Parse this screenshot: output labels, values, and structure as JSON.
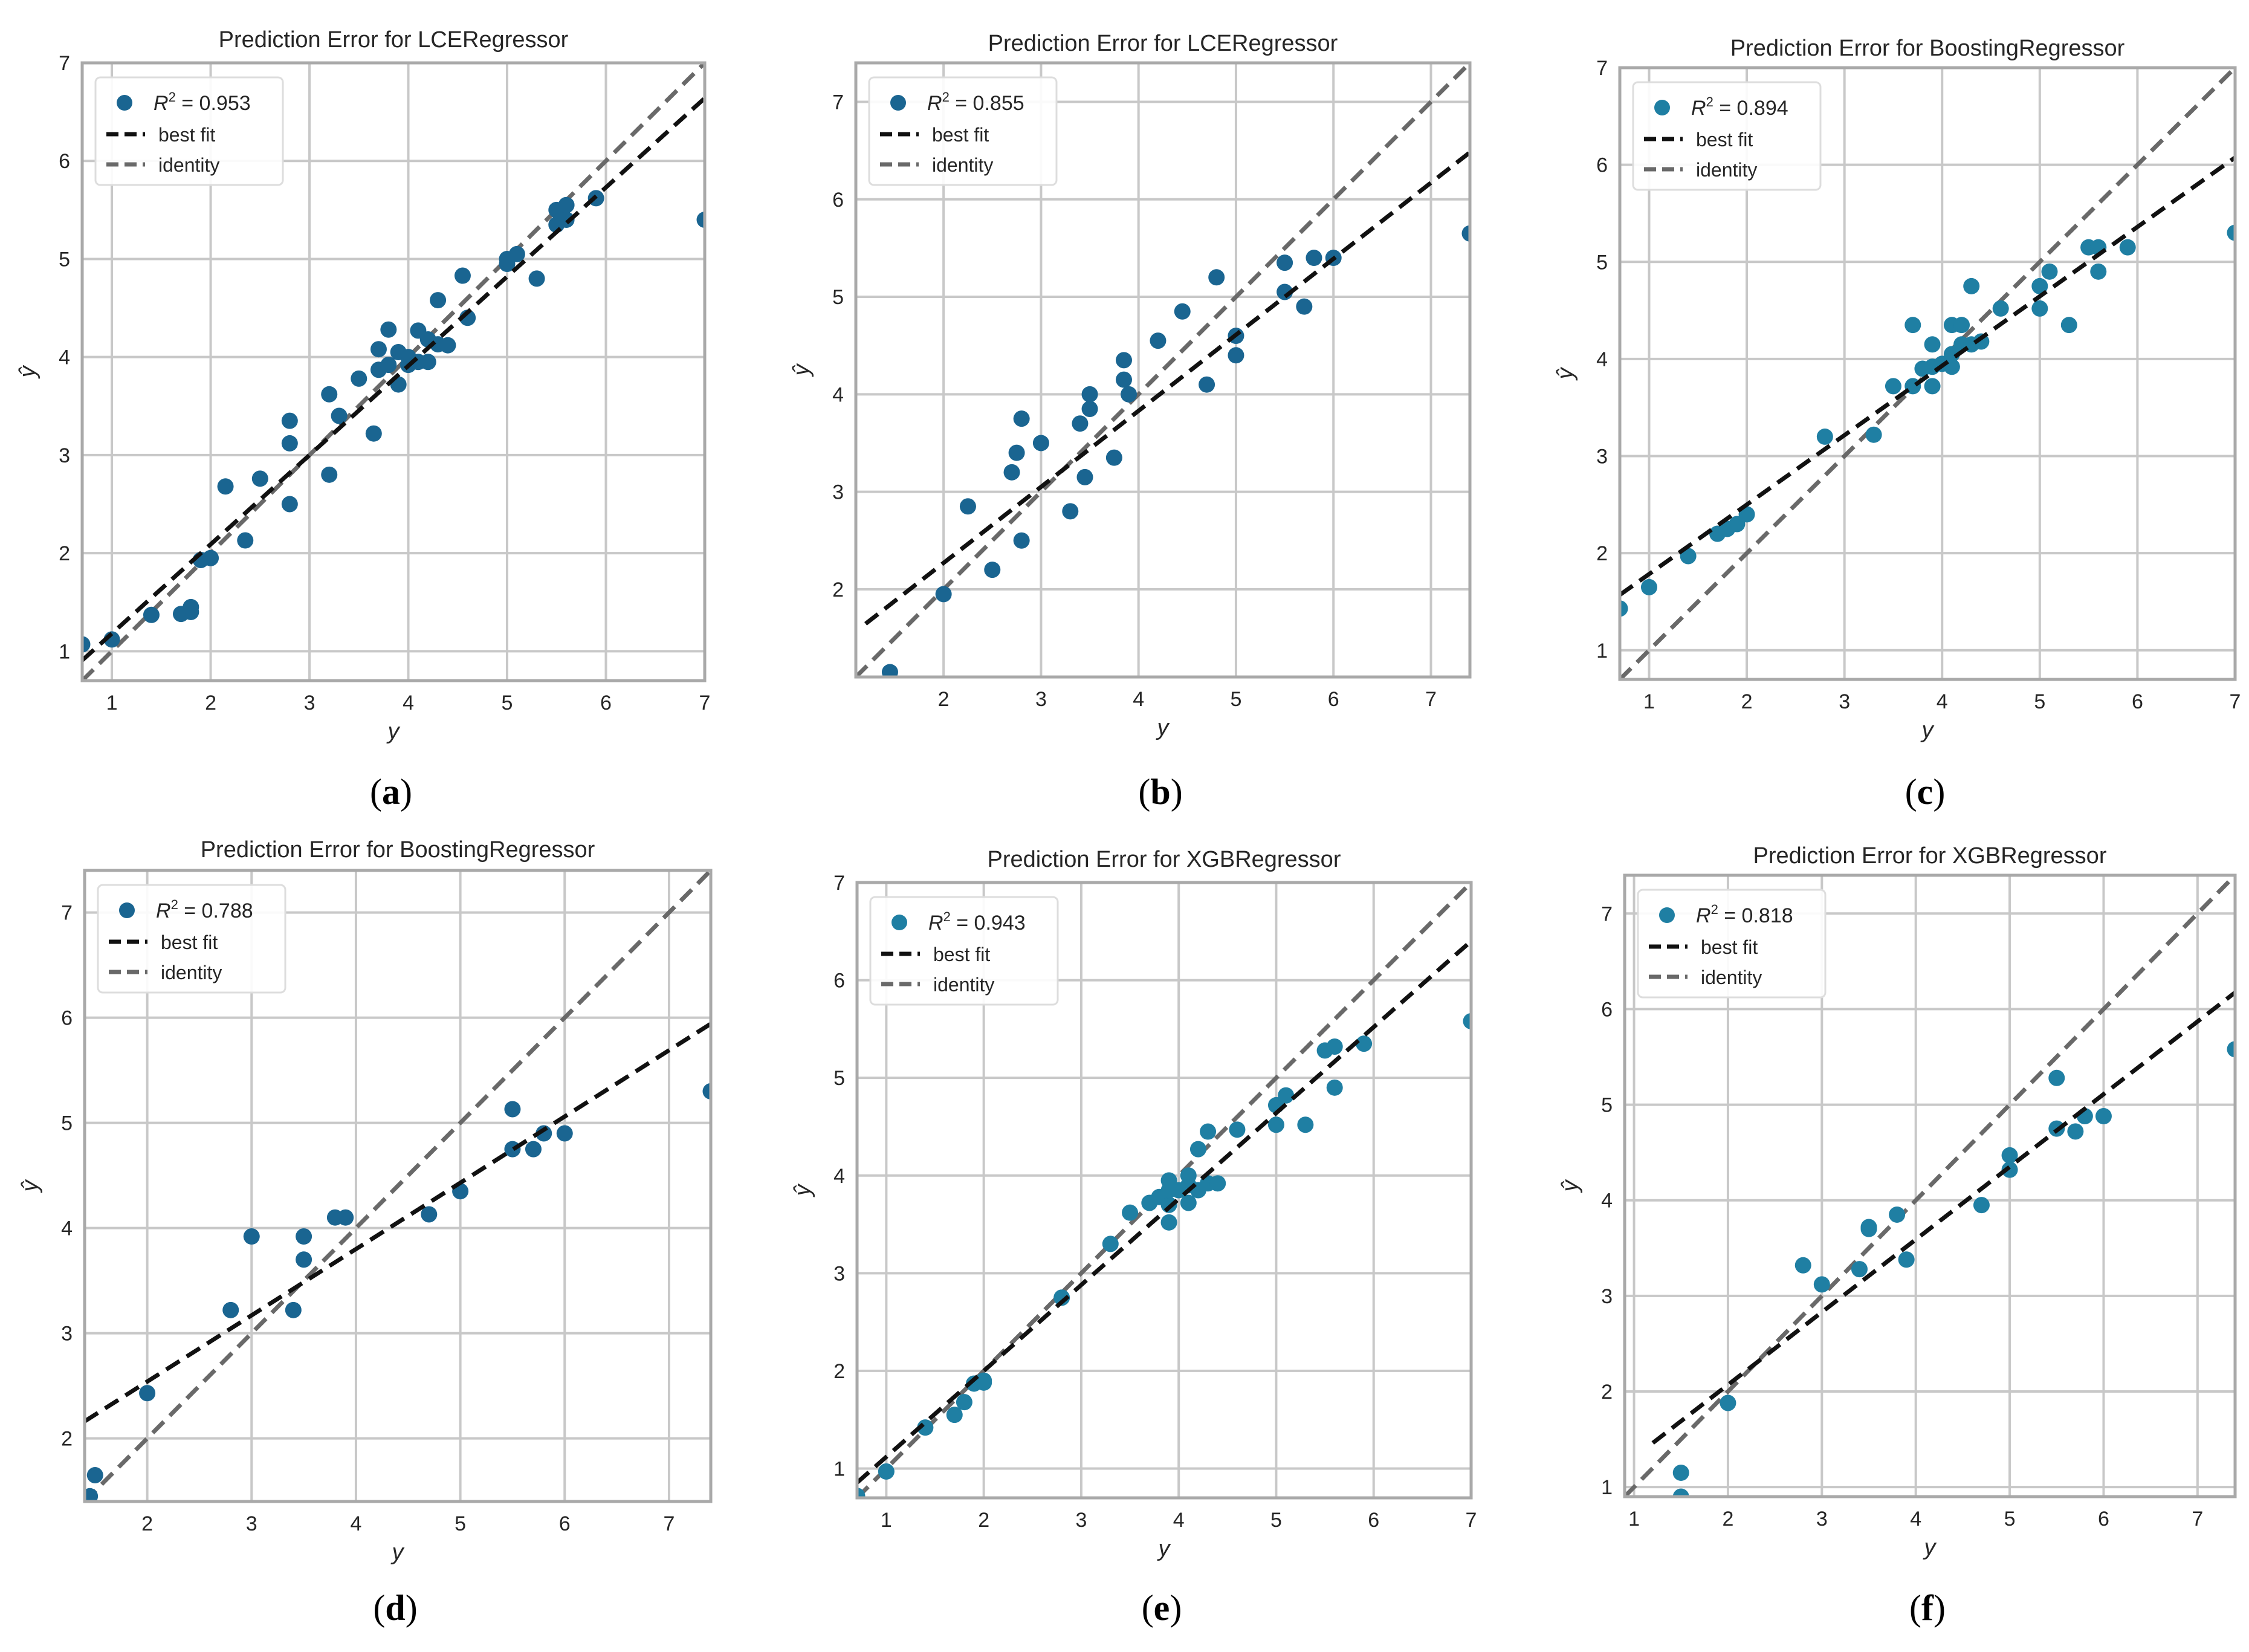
{
  "colors": {
    "point": "#1a6591",
    "point_alt": "#1f7fa3",
    "best_fit": "#111111",
    "identity": "#696969",
    "grid": "#c8c8c8",
    "frame": "#a9a9a9"
  },
  "legend_labels": {
    "best_fit": "best fit",
    "identity": "identity"
  },
  "chart_data": [
    {
      "type": "scatter",
      "panel": "a",
      "caption_letter": "a",
      "title": "Prediction Error for LCERegressor",
      "xlabel": "y",
      "ylabel": "ŷ",
      "xlim": [
        0.7,
        7.0
      ],
      "ylim": [
        0.7,
        7.0
      ],
      "xticks": [
        1,
        2,
        3,
        4,
        5,
        6,
        7
      ],
      "yticks": [
        1,
        2,
        3,
        4,
        5,
        6,
        7
      ],
      "r2_value": "0.953",
      "best_fit": {
        "slope": 0.91,
        "intercept": 0.27
      },
      "legend_position": "upper-left",
      "grid": true,
      "points": [
        [
          0.7,
          1.07
        ],
        [
          1.0,
          1.12
        ],
        [
          1.4,
          1.37
        ],
        [
          1.7,
          1.38
        ],
        [
          1.8,
          1.4
        ],
        [
          1.8,
          1.45
        ],
        [
          1.9,
          1.93
        ],
        [
          2.0,
          1.95
        ],
        [
          2.15,
          2.68
        ],
        [
          2.35,
          2.13
        ],
        [
          2.5,
          2.76
        ],
        [
          2.8,
          2.5
        ],
        [
          2.8,
          3.12
        ],
        [
          2.8,
          3.35
        ],
        [
          3.2,
          2.8
        ],
        [
          3.2,
          3.62
        ],
        [
          3.3,
          3.4
        ],
        [
          3.5,
          3.78
        ],
        [
          3.65,
          3.22
        ],
        [
          3.7,
          3.87
        ],
        [
          3.7,
          4.08
        ],
        [
          3.8,
          3.92
        ],
        [
          3.8,
          4.28
        ],
        [
          3.9,
          3.72
        ],
        [
          3.9,
          4.05
        ],
        [
          4.0,
          3.92
        ],
        [
          4.0,
          4.0
        ],
        [
          4.1,
          3.95
        ],
        [
          4.1,
          4.27
        ],
        [
          4.2,
          3.95
        ],
        [
          4.2,
          4.18
        ],
        [
          4.3,
          4.13
        ],
        [
          4.3,
          4.58
        ],
        [
          4.4,
          4.12
        ],
        [
          4.55,
          4.83
        ],
        [
          4.6,
          4.4
        ],
        [
          5.0,
          4.95
        ],
        [
          5.0,
          5.0
        ],
        [
          5.1,
          5.05
        ],
        [
          5.3,
          4.8
        ],
        [
          5.5,
          5.35
        ],
        [
          5.5,
          5.5
        ],
        [
          5.6,
          5.4
        ],
        [
          5.6,
          5.55
        ],
        [
          5.9,
          5.62
        ],
        [
          7.0,
          5.4
        ]
      ]
    },
    {
      "type": "scatter",
      "panel": "b",
      "caption_letter": "b",
      "title": "Prediction Error for LCERegressor",
      "xlabel": "y",
      "ylabel": "ŷ",
      "xlim": [
        1.1,
        7.4
      ],
      "ylim": [
        1.1,
        7.4
      ],
      "xticks": [
        2,
        3,
        4,
        5,
        6,
        7
      ],
      "yticks": [
        2,
        3,
        4,
        5,
        6,
        7
      ],
      "r2_value": "0.855",
      "best_fit": {
        "slope": 0.78,
        "intercept": 0.71
      },
      "legend_position": "upper-left",
      "grid": true,
      "points": [
        [
          1.45,
          1.15
        ],
        [
          2.0,
          1.95
        ],
        [
          2.25,
          2.85
        ],
        [
          2.5,
          2.2
        ],
        [
          2.7,
          3.2
        ],
        [
          2.75,
          3.4
        ],
        [
          2.8,
          2.5
        ],
        [
          2.8,
          3.75
        ],
        [
          3.0,
          3.5
        ],
        [
          3.3,
          2.8
        ],
        [
          3.4,
          3.7
        ],
        [
          3.45,
          3.15
        ],
        [
          3.5,
          3.85
        ],
        [
          3.5,
          4.0
        ],
        [
          3.75,
          3.35
        ],
        [
          3.85,
          4.15
        ],
        [
          3.85,
          4.35
        ],
        [
          3.9,
          4.0
        ],
        [
          4.2,
          4.55
        ],
        [
          4.45,
          4.85
        ],
        [
          4.7,
          4.1
        ],
        [
          4.8,
          5.2
        ],
        [
          5.0,
          4.4
        ],
        [
          5.0,
          4.6
        ],
        [
          5.5,
          5.05
        ],
        [
          5.5,
          5.35
        ],
        [
          5.7,
          4.9
        ],
        [
          5.8,
          5.4
        ],
        [
          6.0,
          5.4
        ],
        [
          7.4,
          5.65
        ]
      ]
    },
    {
      "type": "scatter",
      "panel": "c",
      "caption_letter": "c",
      "title": "Prediction Error for BoostingRegressor",
      "xlabel": "y",
      "ylabel": "ŷ",
      "xlim": [
        0.7,
        7.0
      ],
      "ylim": [
        0.7,
        7.0
      ],
      "xticks": [
        1,
        2,
        3,
        4,
        5,
        6,
        7
      ],
      "yticks": [
        1,
        2,
        3,
        4,
        5,
        6,
        7
      ],
      "r2_value": "0.894",
      "best_fit": {
        "slope": 0.715,
        "intercept": 1.07
      },
      "legend_position": "upper-left",
      "grid": true,
      "points": [
        [
          0.7,
          1.43
        ],
        [
          1.0,
          1.65
        ],
        [
          1.4,
          1.97
        ],
        [
          1.7,
          2.2
        ],
        [
          1.8,
          2.25
        ],
        [
          1.9,
          2.3
        ],
        [
          2.0,
          2.4
        ],
        [
          2.8,
          3.2
        ],
        [
          3.3,
          3.22
        ],
        [
          3.5,
          3.72
        ],
        [
          3.7,
          3.72
        ],
        [
          3.7,
          4.35
        ],
        [
          3.8,
          3.9
        ],
        [
          3.9,
          3.72
        ],
        [
          3.9,
          3.92
        ],
        [
          3.9,
          4.15
        ],
        [
          4.0,
          3.95
        ],
        [
          4.1,
          3.92
        ],
        [
          4.1,
          4.05
        ],
        [
          4.1,
          4.35
        ],
        [
          4.2,
          4.15
        ],
        [
          4.2,
          4.35
        ],
        [
          4.3,
          4.15
        ],
        [
          4.3,
          4.75
        ],
        [
          4.4,
          4.18
        ],
        [
          4.6,
          4.52
        ],
        [
          5.0,
          4.52
        ],
        [
          5.0,
          4.75
        ],
        [
          5.1,
          4.9
        ],
        [
          5.3,
          4.35
        ],
        [
          5.5,
          5.15
        ],
        [
          5.6,
          4.9
        ],
        [
          5.6,
          5.15
        ],
        [
          5.9,
          5.15
        ],
        [
          7.0,
          5.3
        ]
      ]
    },
    {
      "type": "scatter",
      "panel": "d",
      "caption_letter": "d",
      "title": "Prediction Error for BoostingRegressor",
      "xlabel": "y",
      "ylabel": "ŷ",
      "xlim": [
        1.4,
        7.4
      ],
      "ylim": [
        1.4,
        7.4
      ],
      "xticks": [
        2,
        3,
        4,
        5,
        6,
        7
      ],
      "yticks": [
        2,
        3,
        4,
        5,
        6,
        7
      ],
      "r2_value": "0.788",
      "best_fit": {
        "slope": 0.63,
        "intercept": 1.28
      },
      "legend_position": "upper-left",
      "grid": true,
      "points": [
        [
          1.45,
          1.45
        ],
        [
          1.5,
          1.65
        ],
        [
          2.0,
          2.43
        ],
        [
          2.8,
          3.22
        ],
        [
          3.0,
          3.92
        ],
        [
          3.4,
          3.22
        ],
        [
          3.5,
          3.7
        ],
        [
          3.5,
          3.92
        ],
        [
          3.8,
          4.1
        ],
        [
          3.9,
          4.1
        ],
        [
          4.7,
          4.13
        ],
        [
          5.0,
          4.35
        ],
        [
          5.5,
          4.75
        ],
        [
          5.5,
          5.13
        ],
        [
          5.7,
          4.75
        ],
        [
          5.8,
          4.9
        ],
        [
          6.0,
          4.9
        ],
        [
          7.4,
          5.3
        ]
      ]
    },
    {
      "type": "scatter",
      "panel": "e",
      "caption_letter": "e",
      "title": "Prediction Error for XGBRegressor",
      "xlabel": "y",
      "ylabel": "ŷ",
      "xlim": [
        0.7,
        7.0
      ],
      "ylim": [
        0.7,
        7.0
      ],
      "xticks": [
        1,
        2,
        3,
        4,
        5,
        6,
        7
      ],
      "yticks": [
        1,
        2,
        3,
        4,
        5,
        6,
        7
      ],
      "r2_value": "0.943",
      "best_fit": {
        "slope": 0.88,
        "intercept": 0.24
      },
      "legend_position": "upper-left",
      "grid": true,
      "points": [
        [
          0.7,
          0.72
        ],
        [
          1.0,
          0.97
        ],
        [
          1.4,
          1.42
        ],
        [
          1.7,
          1.55
        ],
        [
          1.8,
          1.68
        ],
        [
          1.9,
          1.87
        ],
        [
          2.0,
          1.88
        ],
        [
          2.0,
          1.9
        ],
        [
          2.8,
          2.75
        ],
        [
          3.3,
          3.3
        ],
        [
          3.5,
          3.62
        ],
        [
          3.7,
          3.72
        ],
        [
          3.8,
          3.78
        ],
        [
          3.9,
          3.52
        ],
        [
          3.9,
          3.7
        ],
        [
          3.9,
          3.85
        ],
        [
          3.9,
          3.95
        ],
        [
          4.0,
          3.85
        ],
        [
          4.1,
          3.72
        ],
        [
          4.1,
          3.9
        ],
        [
          4.1,
          4.0
        ],
        [
          4.2,
          3.85
        ],
        [
          4.2,
          4.27
        ],
        [
          4.3,
          3.92
        ],
        [
          4.3,
          4.45
        ],
        [
          4.4,
          3.92
        ],
        [
          4.6,
          4.47
        ],
        [
          5.0,
          4.52
        ],
        [
          5.0,
          4.72
        ],
        [
          5.1,
          4.82
        ],
        [
          5.3,
          4.52
        ],
        [
          5.5,
          5.28
        ],
        [
          5.6,
          4.9
        ],
        [
          5.6,
          5.32
        ],
        [
          5.9,
          5.35
        ],
        [
          7.0,
          5.58
        ]
      ]
    },
    {
      "type": "scatter",
      "panel": "f",
      "caption_letter": "f",
      "title": "Prediction Error for XGBRegressor",
      "xlabel": "y",
      "ylabel": "ŷ",
      "xlim": [
        0.9,
        7.4
      ],
      "ylim": [
        0.9,
        7.4
      ],
      "xticks": [
        1,
        2,
        3,
        4,
        5,
        6,
        7
      ],
      "yticks": [
        1,
        2,
        3,
        4,
        5,
        6,
        7
      ],
      "r2_value": "0.818",
      "best_fit": {
        "slope": 0.76,
        "intercept": 0.55
      },
      "legend_position": "upper-left",
      "grid": true,
      "points": [
        [
          1.5,
          0.9
        ],
        [
          1.5,
          1.15
        ],
        [
          2.0,
          1.88
        ],
        [
          2.8,
          3.32
        ],
        [
          3.0,
          3.12
        ],
        [
          3.4,
          3.28
        ],
        [
          3.5,
          3.7
        ],
        [
          3.5,
          3.72
        ],
        [
          3.8,
          3.85
        ],
        [
          3.9,
          3.38
        ],
        [
          4.7,
          3.95
        ],
        [
          5.0,
          4.32
        ],
        [
          5.0,
          4.47
        ],
        [
          5.5,
          4.75
        ],
        [
          5.5,
          5.28
        ],
        [
          5.7,
          4.72
        ],
        [
          5.8,
          4.88
        ],
        [
          6.0,
          4.88
        ],
        [
          7.4,
          5.58
        ]
      ]
    }
  ]
}
